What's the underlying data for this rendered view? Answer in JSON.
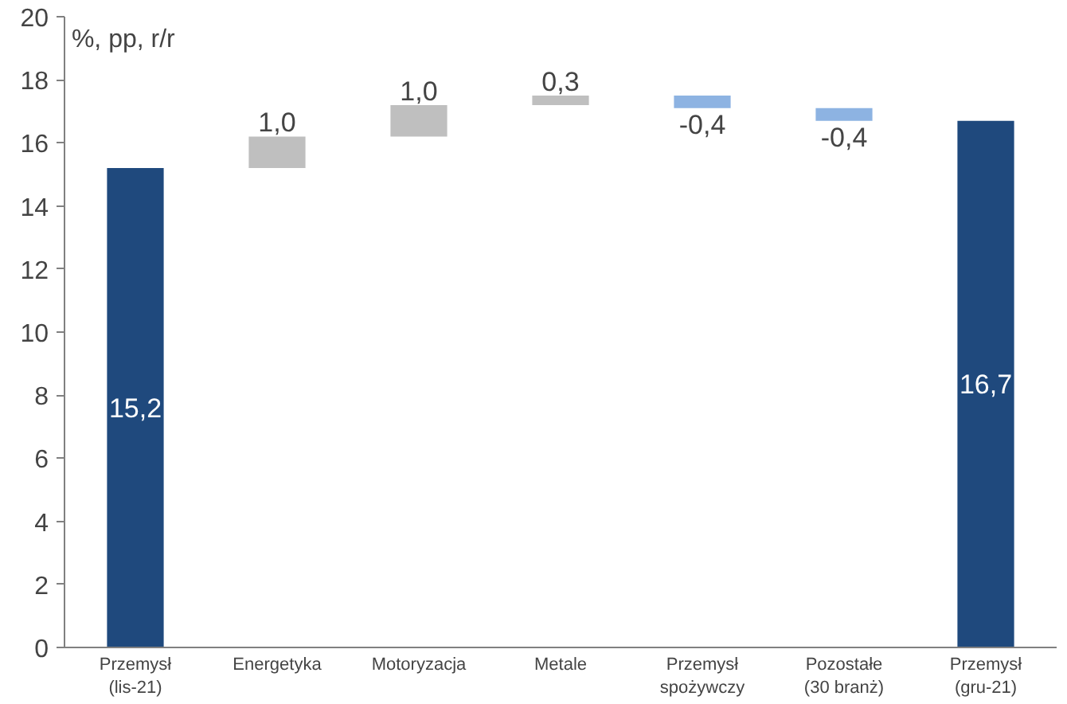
{
  "chart_data": {
    "type": "bar",
    "ylabel": "%, pp, r/r",
    "categories": [
      "Przemysł\n(lis-21)",
      "Energetyka",
      "Motoryzacja",
      "Metale",
      "Przemysł\nspożywczy",
      "Pozostałe\n(30 branż)",
      "Przemysł\n(gru-21)"
    ],
    "values": [
      15.2,
      1.0,
      1.0,
      0.3,
      -0.4,
      -0.4,
      16.7
    ],
    "base": [
      0,
      15.2,
      16.2,
      17.2,
      17.5,
      17.1,
      0
    ],
    "colors": [
      "#1f497d",
      "#bfbfbf",
      "#bfbfbf",
      "#bfbfbf",
      "#8db3e2",
      "#8db3e2",
      "#1f497d"
    ],
    "value_labels": [
      "15,2",
      "1,0",
      "1,0",
      "0,3",
      "-0,4",
      "-0,4",
      "16,7"
    ],
    "ylim": [
      0,
      20
    ],
    "yticks": [
      0,
      2,
      4,
      6,
      8,
      10,
      12,
      14,
      16,
      18,
      20
    ],
    "grid": false
  }
}
